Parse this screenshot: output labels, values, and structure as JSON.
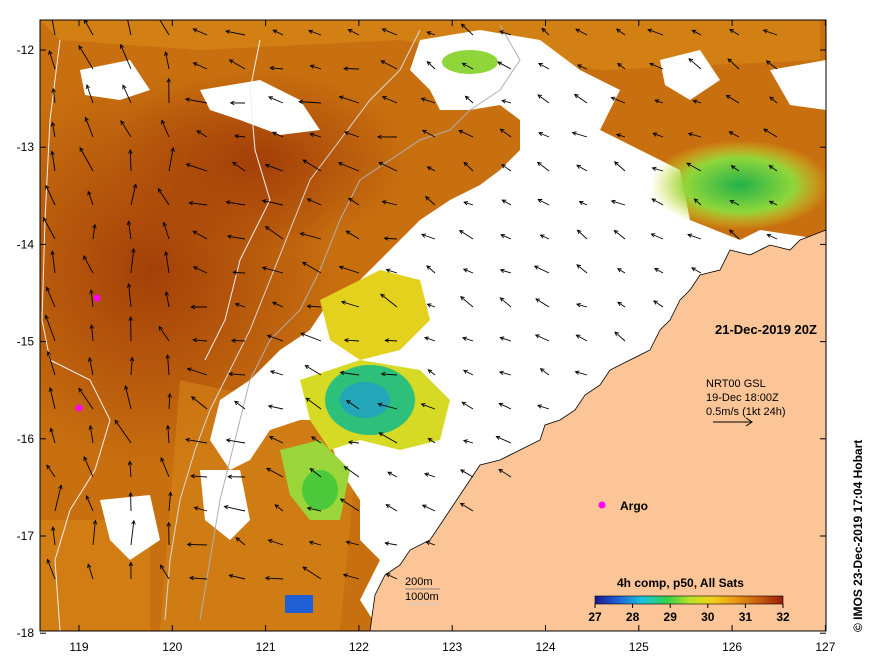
{
  "map": {
    "date_label": "21-Dec-2019 20Z",
    "current_info": [
      "NRT00 GSL",
      "19-Dec 18:00Z",
      "0.5m/s (1kt 24h)"
    ],
    "argo_label": "Argo",
    "contour_labels": [
      "200m",
      "1000m"
    ],
    "colorbar": {
      "title": "4h comp, p50, All Sats",
      "ticks": [
        "27",
        "28",
        "29",
        "30",
        "31",
        "32"
      ],
      "colors": [
        "#1a1a8c",
        "#1f5fd6",
        "#19c4e0",
        "#2fd24a",
        "#b7e12a",
        "#f2d21a",
        "#e89614",
        "#c65a0c",
        "#9a1c08"
      ]
    },
    "credit": "© IMOS 23-Dec-2019 17:04 Hobart",
    "x_ticks": [
      "119",
      "120",
      "121",
      "122",
      "123",
      "124",
      "125",
      "126",
      "127"
    ],
    "y_ticks": [
      "-12",
      "-13",
      "-14",
      "-15",
      "-16",
      "-17",
      "-18"
    ],
    "colors": {
      "land": "#fbc597",
      "warm": "#c8700f",
      "hot": "#a8420a",
      "cloud": "#ffffff"
    }
  }
}
